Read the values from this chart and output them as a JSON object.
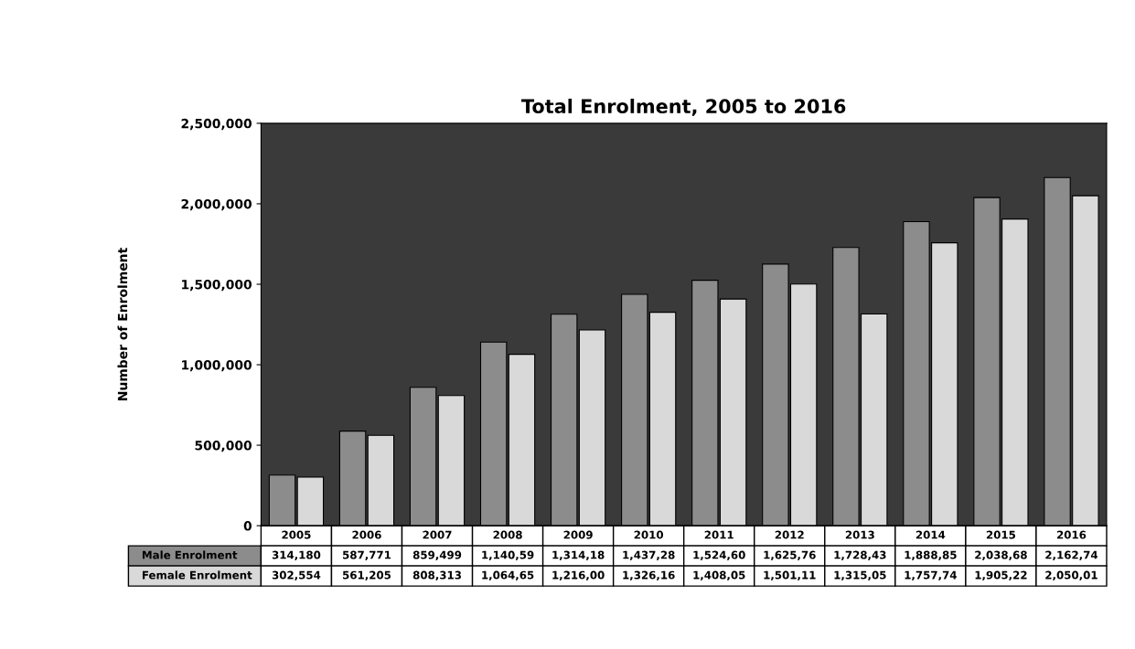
{
  "chart_data": {
    "type": "bar",
    "title": "Total Enrolment, 2005 to 2016",
    "ylabel": "Number of Enrolment",
    "categories": [
      "2005",
      "2006",
      "2007",
      "2008",
      "2009",
      "2010",
      "2011",
      "2012",
      "2013",
      "2014",
      "2015",
      "2016"
    ],
    "series": [
      {
        "name": "Male Enrolment",
        "color": "#8c8c8c",
        "values": [
          314180,
          587771,
          859499,
          1140590,
          1314180,
          1437280,
          1524600,
          1625760,
          1728430,
          1888850,
          2038680,
          2162740
        ],
        "value_labels": [
          "314,180",
          "587,771",
          "859,499",
          "1,140,59",
          "1,314,18",
          "1,437,28",
          "1,524,60",
          "1,625,76",
          "1,728,43",
          "1,888,85",
          "2,038,68",
          "2,162,74"
        ]
      },
      {
        "name": "Female Enrolment",
        "color": "#d9d9d9",
        "values": [
          302554,
          561205,
          808313,
          1064650,
          1216000,
          1326160,
          1408050,
          1501110,
          1315050,
          1757740,
          1905220,
          2050010
        ],
        "value_labels": [
          "302,554",
          "561,205",
          "808,313",
          "1,064,65",
          "1,216,00",
          "1,326,16",
          "1,408,05",
          "1,501,11",
          "1,315,05",
          "1,757,74",
          "1,905,22",
          "2,050,01"
        ]
      }
    ],
    "ylim": [
      0,
      2500000
    ],
    "yticks": [
      {
        "value": 0,
        "label": "0"
      },
      {
        "value": 500000,
        "label": "500,000"
      },
      {
        "value": 1000000,
        "label": "1,000,000"
      },
      {
        "value": 1500000,
        "label": "1,500,000"
      },
      {
        "value": 2000000,
        "label": "2,000,000"
      },
      {
        "value": 2500000,
        "label": "2,500,000"
      }
    ],
    "grid": false
  }
}
